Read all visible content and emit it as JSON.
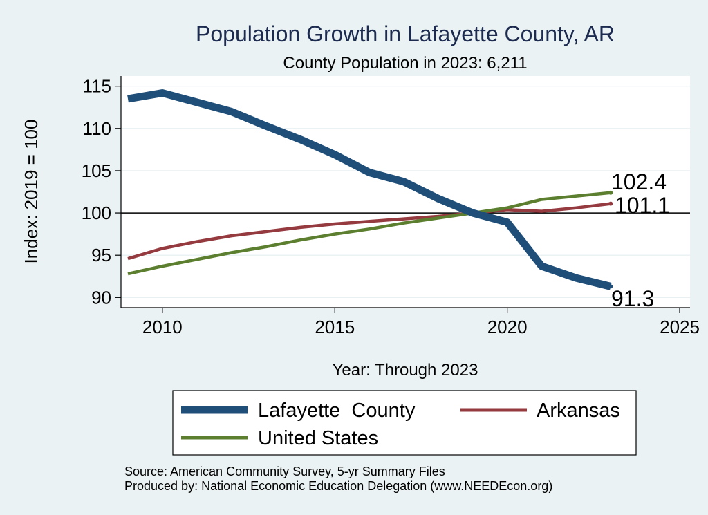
{
  "chart_data": {
    "type": "line",
    "title": "Population Growth in Lafayette County, AR",
    "subtitle": "County Population in 2023: 6,211",
    "xlabel": "Year: Through 2023",
    "ylabel": "Index: 2019 = 100",
    "xlim": [
      2008.8,
      2025.3
    ],
    "ylim": [
      88.8,
      116.2
    ],
    "x_ticks": [
      "2010",
      "2015",
      "2020",
      "2025"
    ],
    "y_ticks": [
      "115",
      "110",
      "105",
      "100",
      "95",
      "90"
    ],
    "reference_line": 100,
    "grid": true,
    "legend_position": "bottom",
    "series": [
      {
        "name": "Lafayette  County",
        "color": "#1f4e79",
        "x": [
          2009,
          2010,
          2011,
          2012,
          2013,
          2014,
          2015,
          2016,
          2017,
          2018,
          2019,
          2020,
          2021,
          2022,
          2023
        ],
        "values": [
          113.5,
          114.2,
          113.1,
          112.0,
          110.3,
          108.7,
          106.9,
          104.8,
          103.7,
          101.7,
          100.0,
          98.9,
          93.7,
          92.3,
          91.3
        ],
        "end_label": "91.3"
      },
      {
        "name": "Arkansas",
        "color": "#953a3f",
        "x": [
          2009,
          2010,
          2011,
          2012,
          2013,
          2014,
          2015,
          2016,
          2017,
          2018,
          2019,
          2020,
          2021,
          2022,
          2023
        ],
        "values": [
          94.6,
          95.8,
          96.6,
          97.3,
          97.8,
          98.3,
          98.7,
          99.0,
          99.3,
          99.6,
          100.0,
          100.4,
          100.2,
          100.6,
          101.1
        ],
        "end_label": "101.1"
      },
      {
        "name": "United States",
        "color": "#5b7f2e",
        "x": [
          2009,
          2010,
          2011,
          2012,
          2013,
          2014,
          2015,
          2016,
          2017,
          2018,
          2019,
          2020,
          2021,
          2022,
          2023
        ],
        "values": [
          92.8,
          93.7,
          94.5,
          95.3,
          96.0,
          96.8,
          97.5,
          98.1,
          98.8,
          99.4,
          100.0,
          100.6,
          101.6,
          102.0,
          102.4
        ],
        "end_label": "102.4"
      }
    ]
  },
  "source_text": "Source: American Community Survey, 5-yr Summary Files",
  "produced_text": "Produced by: National Economic Education Delegation (www.NEEDEcon.org)"
}
